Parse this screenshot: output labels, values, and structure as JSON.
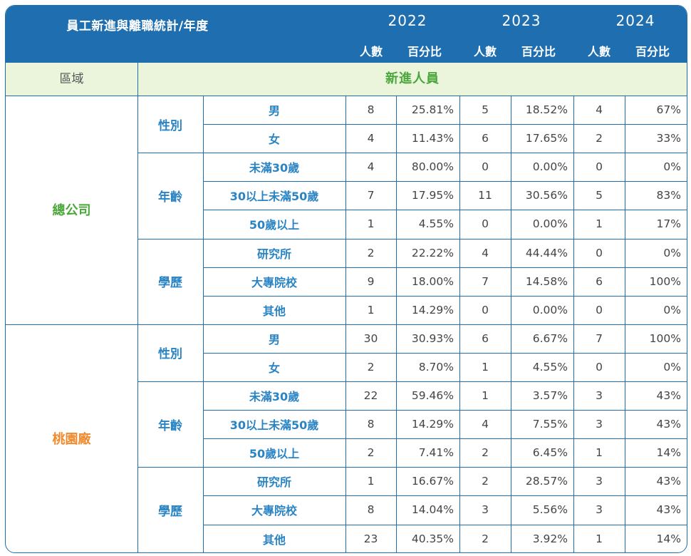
{
  "header": {
    "title": "員工新進與離職統計/年度",
    "years": [
      "2022",
      "2023",
      "2024"
    ],
    "count_label": "人數",
    "pct_label": "百分比"
  },
  "subheader": {
    "region_label": "區域",
    "section_label": "新進人員"
  },
  "colors": {
    "header_bg": "#1f6fb0",
    "green_row_bg": "#eaf5dc",
    "hq": "#4aa83a",
    "taoyuan": "#f08a2c",
    "category": "#2a84c4"
  },
  "regions": [
    {
      "name": "總公司",
      "color": "#4aa83a",
      "categories": [
        {
          "name": "性別",
          "rows": [
            {
              "label": "男",
              "cells": [
                "8",
                "25.81%",
                "5",
                "18.52%",
                "4",
                "67%"
              ]
            },
            {
              "label": "女",
              "cells": [
                "4",
                "11.43%",
                "6",
                "17.65%",
                "2",
                "33%"
              ]
            }
          ]
        },
        {
          "name": "年齡",
          "rows": [
            {
              "label": "未滿30歲",
              "cells": [
                "4",
                "80.00%",
                "0",
                "0.00%",
                "0",
                "0%"
              ]
            },
            {
              "label": "30以上未滿50歲",
              "cells": [
                "7",
                "17.95%",
                "11",
                "30.56%",
                "5",
                "83%"
              ]
            },
            {
              "label": "50歲以上",
              "cells": [
                "1",
                "4.55%",
                "0",
                "0.00%",
                "1",
                "17%"
              ]
            }
          ]
        },
        {
          "name": "學歷",
          "rows": [
            {
              "label": "研究所",
              "cells": [
                "2",
                "22.22%",
                "4",
                "44.44%",
                "0",
                "0%"
              ]
            },
            {
              "label": "大專院校",
              "cells": [
                "9",
                "18.00%",
                "7",
                "14.58%",
                "6",
                "100%"
              ]
            },
            {
              "label": "其他",
              "cells": [
                "1",
                "14.29%",
                "0",
                "0.00%",
                "0",
                "0%"
              ]
            }
          ]
        }
      ]
    },
    {
      "name": "桃園廠",
      "color": "#f08a2c",
      "categories": [
        {
          "name": "性別",
          "rows": [
            {
              "label": "男",
              "cells": [
                "30",
                "30.93%",
                "6",
                "6.67%",
                "7",
                "100%"
              ]
            },
            {
              "label": "女",
              "cells": [
                "2",
                "8.70%",
                "1",
                "4.55%",
                "0",
                "0%"
              ]
            }
          ]
        },
        {
          "name": "年齡",
          "rows": [
            {
              "label": "未滿30歲",
              "cells": [
                "22",
                "59.46%",
                "1",
                "3.57%",
                "3",
                "43%"
              ]
            },
            {
              "label": "30以上未滿50歲",
              "cells": [
                "8",
                "14.29%",
                "4",
                "7.55%",
                "3",
                "43%"
              ]
            },
            {
              "label": "50歲以上",
              "cells": [
                "2",
                "7.41%",
                "2",
                "6.45%",
                "1",
                "14%"
              ]
            }
          ]
        },
        {
          "name": "學歷",
          "rows": [
            {
              "label": "研究所",
              "cells": [
                "1",
                "16.67%",
                "2",
                "28.57%",
                "3",
                "43%"
              ]
            },
            {
              "label": "大專院校",
              "cells": [
                "8",
                "14.04%",
                "3",
                "5.56%",
                "3",
                "43%"
              ]
            },
            {
              "label": "其他",
              "cells": [
                "23",
                "40.35%",
                "2",
                "3.92%",
                "1",
                "14%"
              ]
            }
          ]
        }
      ]
    }
  ]
}
